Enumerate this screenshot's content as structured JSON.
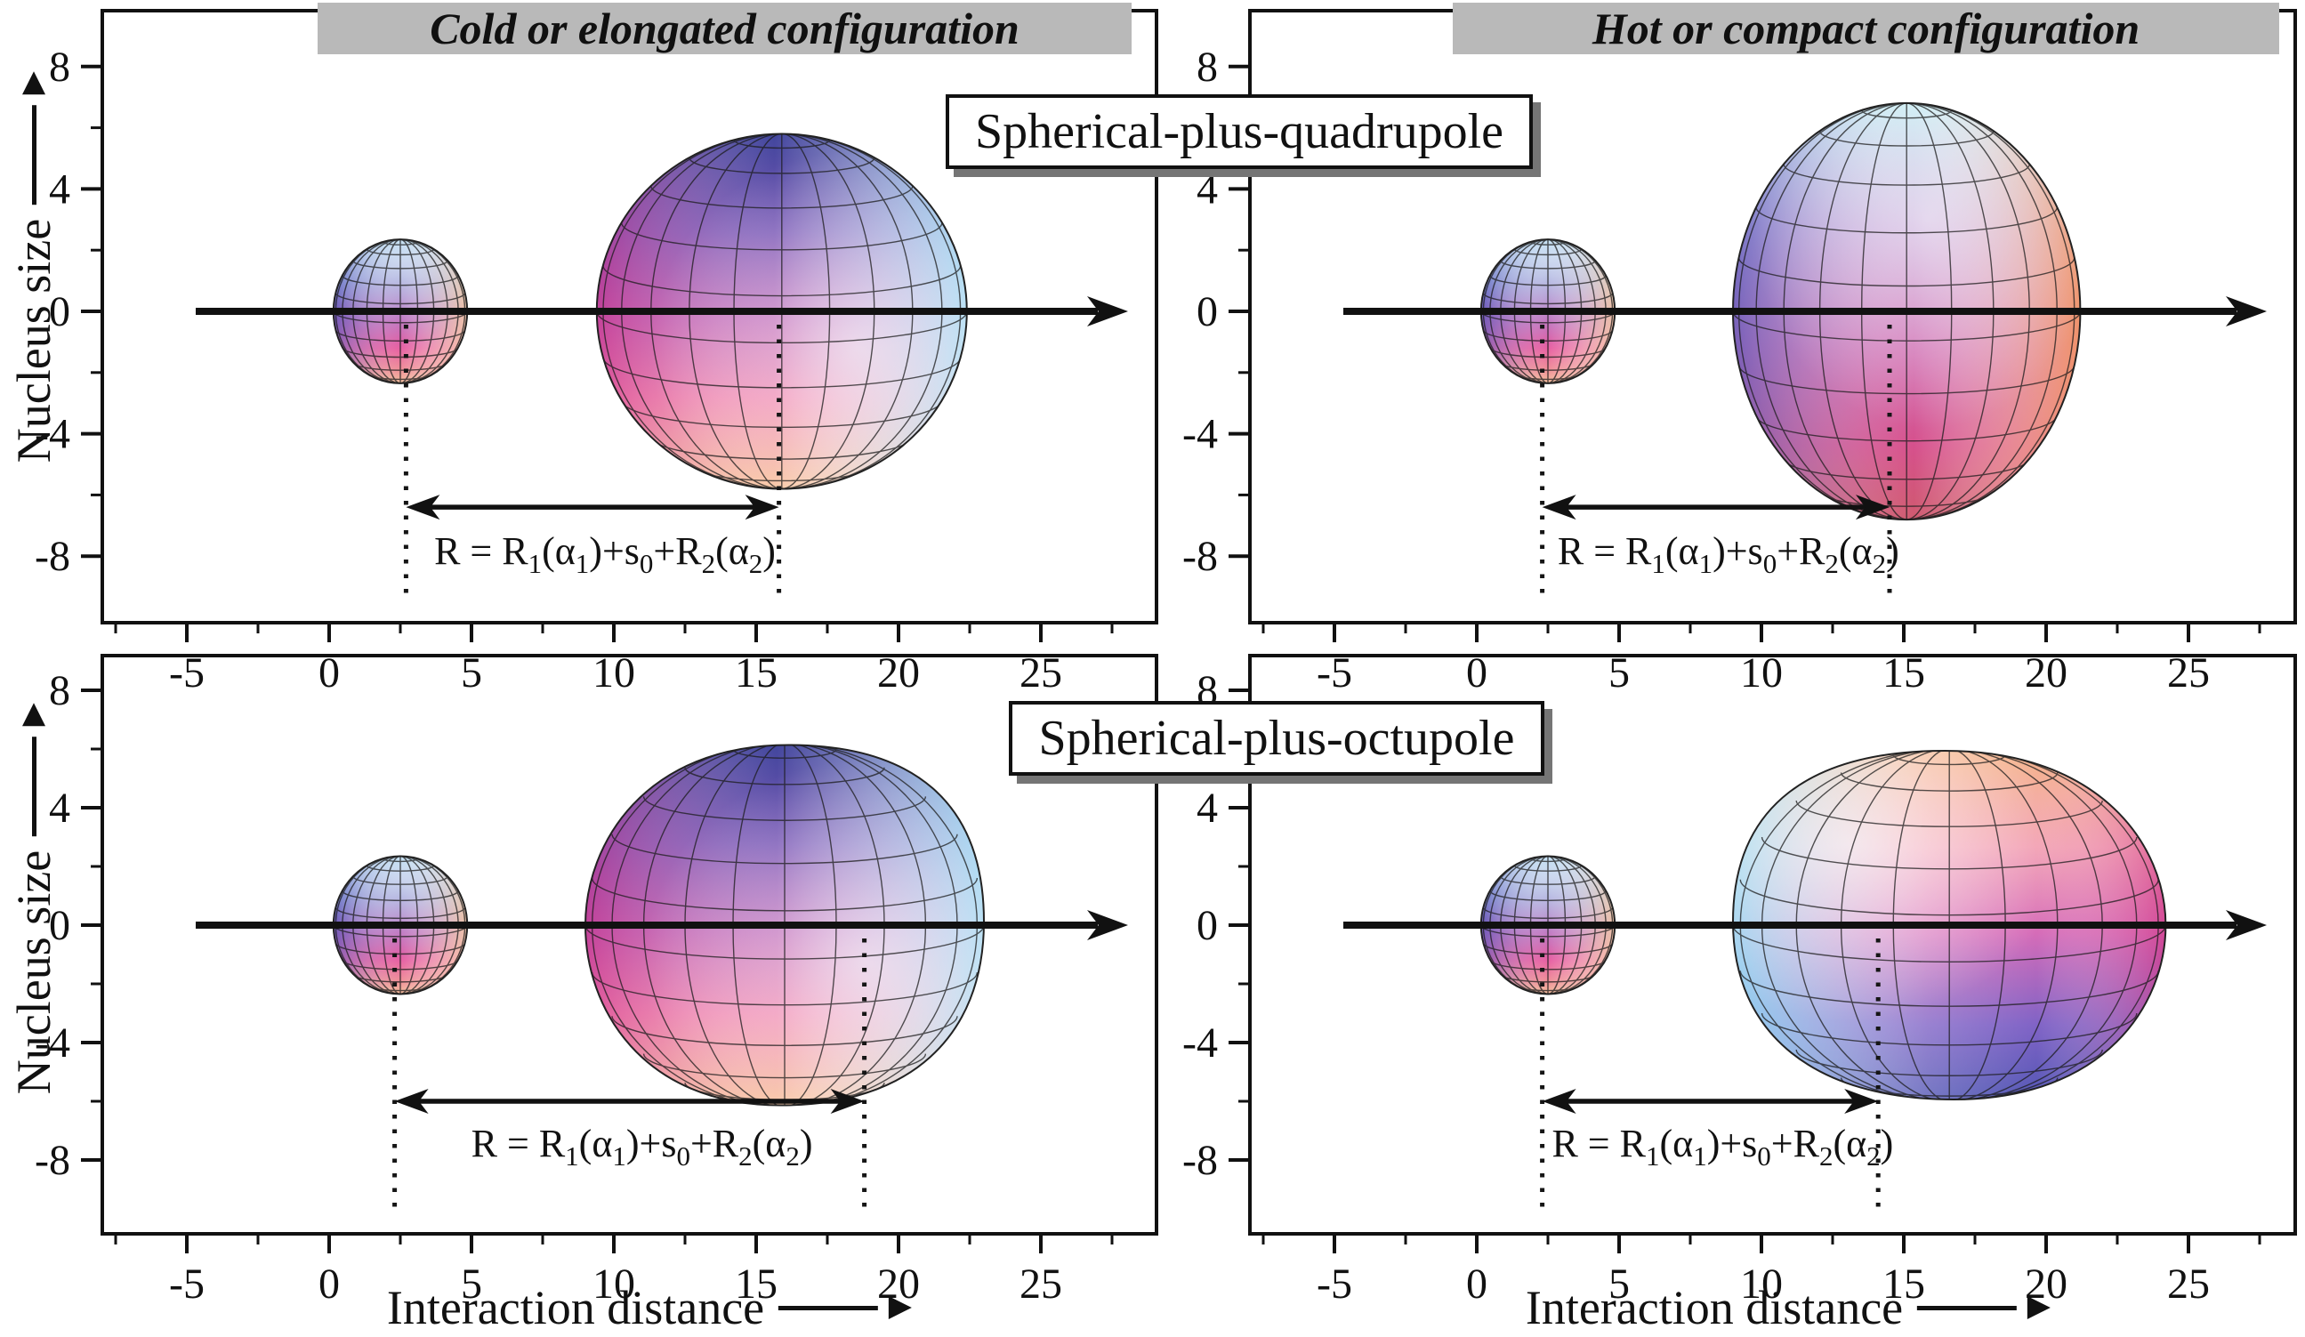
{
  "figure": {
    "column_titles": [
      "Cold or elongated configuration",
      "Hot or compact configuration"
    ],
    "row_box_labels": [
      "Spherical-plus-quadrupole",
      "Spherical-plus-octupole"
    ],
    "y_axis_label": "Nucleus size",
    "x_axis_label": "Interaction distance"
  },
  "chart_data": {
    "type": "diagram",
    "description": "Four-panel schematic of nuclear collision configurations: spherical projectile plus deformed (quadrupole/octupole) target, cold-elongated vs hot-compact orientations",
    "x_axis": {
      "label": "Interaction distance",
      "major_ticks": [
        -5,
        0,
        5,
        10,
        15,
        20,
        25
      ],
      "minor_start": -7.5,
      "minor_end": 27.5,
      "minor_step": 2.5
    },
    "y_axis": {
      "label": "Nucleus size",
      "major_ticks": [
        8,
        4,
        0,
        -4,
        -8
      ],
      "tick_step": 2
    },
    "formula_segments": [
      [
        "R = R",
        "n"
      ],
      [
        "1",
        "s"
      ],
      [
        "(α",
        "n"
      ],
      [
        "1",
        "s"
      ],
      [
        ")+s",
        "n"
      ],
      [
        "0",
        "s"
      ],
      [
        "+R",
        "n"
      ],
      [
        "2",
        "s"
      ],
      [
        "(α",
        "n"
      ],
      [
        "2",
        "s"
      ],
      [
        ")",
        "n"
      ]
    ],
    "panels": [
      {
        "id": "top-left",
        "column": "Cold or elongated configuration",
        "multipole": "Spherical-plus-quadrupole",
        "projectile": {
          "cx": 2.5,
          "r": 2.35,
          "palette": "small"
        },
        "target": {
          "shape": "ellipse",
          "cx": 15.9,
          "rx": 6.5,
          "ry": 5.8,
          "palette": "cold"
        },
        "markers": [
          2.7,
          15.8
        ],
        "arrow_y": -6.4,
        "formula_y": -7.95
      },
      {
        "id": "top-right",
        "column": "Hot or compact configuration",
        "multipole": "Spherical-plus-quadrupole",
        "projectile": {
          "cx": 2.5,
          "r": 2.35,
          "palette": "small"
        },
        "target": {
          "shape": "ellipse",
          "cx": 15.1,
          "rx": 6.1,
          "ry": 6.8,
          "palette": "hot"
        },
        "markers": [
          2.3,
          14.5
        ],
        "arrow_y": -6.4,
        "formula_y": -7.95
      },
      {
        "id": "bottom-left",
        "column": "Cold or elongated configuration",
        "multipole": "Spherical-plus-octupole",
        "projectile": {
          "cx": 2.5,
          "r": 2.35,
          "palette": "small"
        },
        "target": {
          "shape": "pear-left",
          "cx": 16.0,
          "rx": 7.0,
          "ry": 6.2,
          "palette": "cold"
        },
        "markers": [
          2.3,
          18.8
        ],
        "arrow_y": -6.0,
        "formula_y": -7.55
      },
      {
        "id": "bottom-right",
        "column": "Hot or compact configuration",
        "multipole": "Spherical-plus-octupole",
        "projectile": {
          "cx": 2.5,
          "r": 2.35,
          "palette": "small"
        },
        "target": {
          "shape": "pear-right",
          "cx": 16.6,
          "rx": 7.6,
          "ry": 6.0,
          "palette": "hot2"
        },
        "markers": [
          2.3,
          14.1
        ],
        "arrow_y": -6.0,
        "formula_y": -7.55
      }
    ],
    "palettes": {
      "small": {
        "v": [
          [
            0,
            "#a3d2ee"
          ],
          [
            0.3,
            "#8e92d2"
          ],
          [
            0.55,
            "#b565ba"
          ],
          [
            0.75,
            "#e660a2"
          ],
          [
            0.9,
            "#ef9097"
          ],
          [
            1,
            "#f4c69e"
          ]
        ],
        "h": [
          [
            0,
            "rgba(50,70,180,0.55)"
          ],
          [
            0.5,
            "rgba(255,255,255,0)"
          ],
          [
            1,
            "rgba(250,210,160,0.85)"
          ]
        ],
        "hl": {
          "cx": 0.5,
          "cy": 0.16,
          "r": 0.55,
          "c": "rgba(255,255,255,0.5)"
        }
      },
      "cold": {
        "v": [
          [
            0,
            "#40459c"
          ],
          [
            0.28,
            "#7a58b6"
          ],
          [
            0.52,
            "#bc64b6"
          ],
          [
            0.74,
            "#ee84ae"
          ],
          [
            1,
            "#f8c69e"
          ]
        ],
        "h": [
          [
            0,
            "rgba(205,30,125,0.5)"
          ],
          [
            0.48,
            "rgba(255,255,255,0)"
          ],
          [
            1,
            "rgba(160,228,248,0.9)"
          ]
        ],
        "hl": {
          "cx": 0.7,
          "cy": 0.6,
          "r": 0.55,
          "c": "rgba(255,255,255,0.6)"
        }
      },
      "hot": {
        "v": [
          [
            0,
            "#c2ebf2"
          ],
          [
            0.3,
            "#c2a0d6"
          ],
          [
            0.58,
            "#cf6fb4"
          ],
          [
            0.82,
            "#d6508c"
          ],
          [
            1,
            "#cf5a6e"
          ]
        ],
        "h": [
          [
            0,
            "rgba(60,80,185,0.6)"
          ],
          [
            0.52,
            "rgba(255,255,255,0)"
          ],
          [
            1,
            "rgba(246,150,90,0.85)"
          ]
        ],
        "hl": {
          "cx": 0.56,
          "cy": 0.28,
          "r": 0.5,
          "c": "rgba(255,255,255,0.55)"
        }
      },
      "hot2": {
        "v": [
          [
            0,
            "#f5b386"
          ],
          [
            0.28,
            "#f29fb2"
          ],
          [
            0.52,
            "#d66cb8"
          ],
          [
            0.78,
            "#8063c6"
          ],
          [
            1,
            "#5156b4"
          ]
        ],
        "h": [
          [
            0,
            "rgba(140,225,248,0.85)"
          ],
          [
            0.45,
            "rgba(255,255,255,0.2)"
          ],
          [
            0.7,
            "rgba(255,255,255,0)"
          ],
          [
            1,
            "rgba(205,30,115,0.5)"
          ]
        ],
        "hl": {
          "cx": 0.27,
          "cy": 0.27,
          "r": 0.5,
          "c": "rgba(255,255,255,0.6)"
        }
      }
    }
  }
}
